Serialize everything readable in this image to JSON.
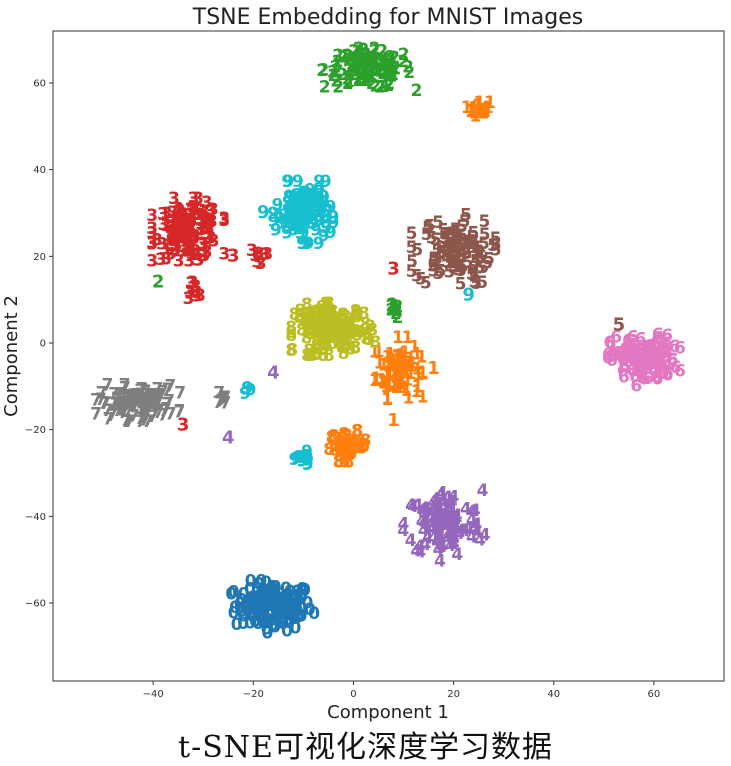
{
  "chart_data": {
    "type": "scatter",
    "title": "TSNE Embedding for MNIST Images",
    "xlabel": "Component 1",
    "ylabel": "Component 2",
    "xlim": [
      -60,
      74
    ],
    "ylim": [
      -78,
      72
    ],
    "xticks": [
      -40,
      -20,
      0,
      20,
      40,
      60
    ],
    "yticks": [
      -60,
      -40,
      -20,
      0,
      20,
      40,
      60
    ],
    "grid": false,
    "legend": "none",
    "point_marker": "digit label text",
    "clusters": [
      {
        "label": "0",
        "color": "#1f77b4",
        "center": [
          -16,
          -61
        ],
        "spread": [
          7,
          5
        ],
        "count": 140
      },
      {
        "label": "1",
        "color": "#ff7f0e",
        "center": [
          9,
          -6
        ],
        "spread": [
          4,
          6
        ],
        "count": 90
      },
      {
        "label": "1",
        "color": "#ff7f0e",
        "center": [
          25,
          54
        ],
        "spread": [
          2,
          1.5
        ],
        "count": 20
      },
      {
        "label": "8",
        "color": "#ff7f0e",
        "center": [
          -1,
          -24
        ],
        "spread": [
          3.5,
          3
        ],
        "count": 40
      },
      {
        "label": "2",
        "color": "#2ca02c",
        "center": [
          3,
          63
        ],
        "spread": [
          8,
          4
        ],
        "count": 120
      },
      {
        "label": "2",
        "color": "#2ca02c",
        "center": [
          8,
          7
        ],
        "spread": [
          1,
          1.5
        ],
        "count": 8
      },
      {
        "label": "3",
        "color": "#d62728",
        "center": [
          -33,
          26
        ],
        "spread": [
          6,
          6
        ],
        "count": 130
      },
      {
        "label": "3",
        "color": "#d62728",
        "center": [
          -32,
          12
        ],
        "spread": [
          1.5,
          2
        ],
        "count": 10
      },
      {
        "label": "3",
        "color": "#d62728",
        "center": [
          -19,
          20
        ],
        "spread": [
          1.5,
          1.5
        ],
        "count": 8
      },
      {
        "label": "4",
        "color": "#9467bd",
        "center": [
          18,
          -42
        ],
        "spread": [
          7,
          7
        ],
        "count": 110
      },
      {
        "label": "5",
        "color": "#8c564b",
        "center": [
          20,
          21
        ],
        "spread": [
          7,
          7
        ],
        "count": 110
      },
      {
        "label": "6",
        "color": "#e377c2",
        "center": [
          58,
          -4
        ],
        "spread": [
          6,
          5
        ],
        "count": 120
      },
      {
        "label": "7",
        "color": "#7f7f7f",
        "center": [
          -43,
          -14
        ],
        "spread": [
          7,
          3.5
        ],
        "count": 110
      },
      {
        "label": "7",
        "color": "#7f7f7f",
        "center": [
          -27,
          -13
        ],
        "spread": [
          1.5,
          1.5
        ],
        "count": 6
      },
      {
        "label": "8",
        "color": "#bcbd22",
        "center": [
          -4,
          3
        ],
        "spread": [
          7,
          5
        ],
        "count": 140
      },
      {
        "label": "9",
        "color": "#17becf",
        "center": [
          -10,
          30
        ],
        "spread": [
          5,
          6
        ],
        "count": 120
      },
      {
        "label": "9",
        "color": "#17becf",
        "center": [
          -10,
          -27
        ],
        "spread": [
          1.5,
          1.5
        ],
        "count": 15
      },
      {
        "label": "9",
        "color": "#17becf",
        "center": [
          -21,
          -11
        ],
        "spread": [
          1,
          1
        ],
        "count": 4
      }
    ],
    "outliers": [
      {
        "label": "9",
        "color": "#17becf",
        "x": -18,
        "y": 30
      },
      {
        "label": "2",
        "color": "#2ca02c",
        "x": -39,
        "y": 14
      },
      {
        "label": "3",
        "color": "#d62728",
        "x": -31,
        "y": 19
      },
      {
        "label": "3",
        "color": "#d62728",
        "x": -24,
        "y": 20
      },
      {
        "label": "3",
        "color": "#d62728",
        "x": 8,
        "y": 17
      },
      {
        "label": "3",
        "color": "#d62728",
        "x": -34,
        "y": -19
      },
      {
        "label": "1",
        "color": "#ff7f0e",
        "x": 16,
        "y": -6
      },
      {
        "label": "1",
        "color": "#ff7f0e",
        "x": 8,
        "y": -18
      },
      {
        "label": "9",
        "color": "#17becf",
        "x": 23,
        "y": 11
      },
      {
        "label": "4",
        "color": "#9467bd",
        "x": -16,
        "y": -7
      },
      {
        "label": "4",
        "color": "#9467bd",
        "x": -25,
        "y": -22
      },
      {
        "label": "5",
        "color": "#8c564b",
        "x": 53,
        "y": 4
      }
    ]
  },
  "caption": "t-SNE可视化深度学习数据"
}
